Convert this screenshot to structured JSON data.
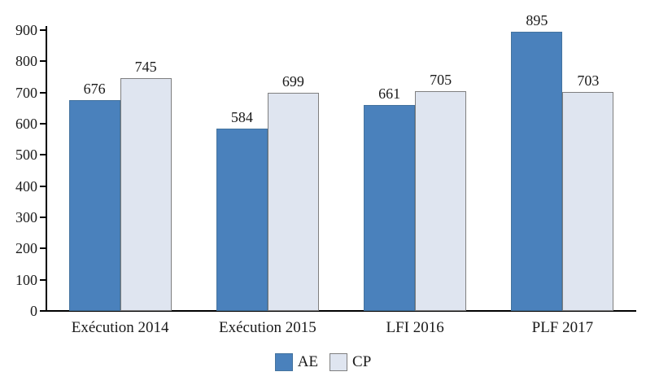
{
  "chart_data": {
    "type": "bar",
    "title": "",
    "xlabel": "",
    "ylabel": "",
    "categories": [
      "Exécution 2014",
      "Exécution 2015",
      "LFI 2016",
      "PLF 2017"
    ],
    "series": [
      {
        "name": "AE",
        "values": [
          676,
          584,
          661,
          895
        ],
        "fill": "#4a81bc",
        "border": "#44739e"
      },
      {
        "name": "CP",
        "values": [
          745,
          699,
          705,
          703
        ],
        "fill": "#dfe5f0",
        "border": "#7f7f7f"
      }
    ],
    "data_labels": true,
    "ylim": [
      0,
      900
    ],
    "yticks": [
      0,
      100,
      200,
      300,
      400,
      500,
      600,
      700,
      800,
      900
    ],
    "grid": false,
    "legend_position": "bottom",
    "axis_color": "#000000",
    "text_color": "#1a1a1a",
    "background_color": "#ffffff"
  }
}
